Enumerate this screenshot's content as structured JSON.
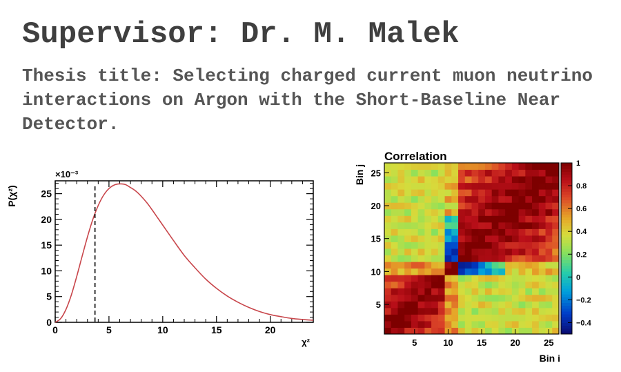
{
  "slide": {
    "title": "Supervisor: Dr. M. Malek",
    "thesis_title": "Thesis title: Selecting charged current muon neutrino interactions on Argon with the Short-Baseline Near Detector."
  },
  "colors": {
    "title_text": "#3f3f3f",
    "body_text": "#555555",
    "chi2_curve": "#c8464b",
    "chi2_marker": "#000000"
  },
  "chart_data": [
    {
      "type": "line",
      "title": "",
      "xlabel": "χ²",
      "ylabel": "P(χ²)",
      "y_multiplier": "×10⁻³",
      "xlim": [
        0,
        24
      ],
      "ylim": [
        0,
        27.5
      ],
      "xticks": [
        0,
        5,
        10,
        15,
        20
      ],
      "yticks": [
        0,
        5,
        10,
        15,
        20,
        25
      ],
      "series": [
        {
          "x": [
            0,
            0.5,
            1,
            1.5,
            2,
            2.5,
            3,
            3.5,
            4,
            4.5,
            5,
            5.5,
            6,
            6.5,
            7,
            7.5,
            8,
            8.5,
            9,
            9.5,
            10,
            11,
            12,
            13,
            14,
            15,
            16,
            17,
            18,
            19,
            20,
            21,
            22,
            23,
            24
          ],
          "values": [
            0,
            0.7,
            2.5,
            5.3,
            8.9,
            12.8,
            16.6,
            20.0,
            22.7,
            24.7,
            26.0,
            26.7,
            26.9,
            26.8,
            26.2,
            25.5,
            24.5,
            23.3,
            21.9,
            20.4,
            18.9,
            15.9,
            13.0,
            10.6,
            8.4,
            6.6,
            5.1,
            3.9,
            2.9,
            2.1,
            1.5,
            1.1,
            0.75,
            0.55,
            0.4
          ]
        }
      ],
      "vline": 3.7
    },
    {
      "type": "heatmap",
      "title": "Correlation",
      "xlabel": "Bin i",
      "ylabel": "Bin j",
      "n_bins": 26,
      "xticks": [
        5,
        10,
        15,
        20,
        25
      ],
      "yticks": [
        5,
        10,
        15,
        20,
        25
      ],
      "zlim": [
        -0.5,
        1
      ],
      "colorbar_ticks": [
        -0.4,
        -0.2,
        0,
        0.2,
        0.4,
        0.6,
        0.8,
        1
      ],
      "colorbar_tick_labels": [
        "−0.4",
        "−0.2",
        "0",
        "0.2",
        "0.4",
        "0.6",
        "0.8",
        "1"
      ],
      "group_a": [
        1,
        2,
        3,
        4,
        5,
        6,
        7,
        8,
        9
      ],
      "group_b": [
        10,
        11
      ],
      "group_c": [
        12,
        13,
        14,
        15,
        16,
        17,
        18,
        19,
        20,
        21,
        22,
        23,
        24,
        25,
        26
      ],
      "cross_ab": 0.55,
      "cross_ac": 0.35,
      "cross_bc_low": -0.4,
      "cross_bc_high": 0.45
    }
  ]
}
